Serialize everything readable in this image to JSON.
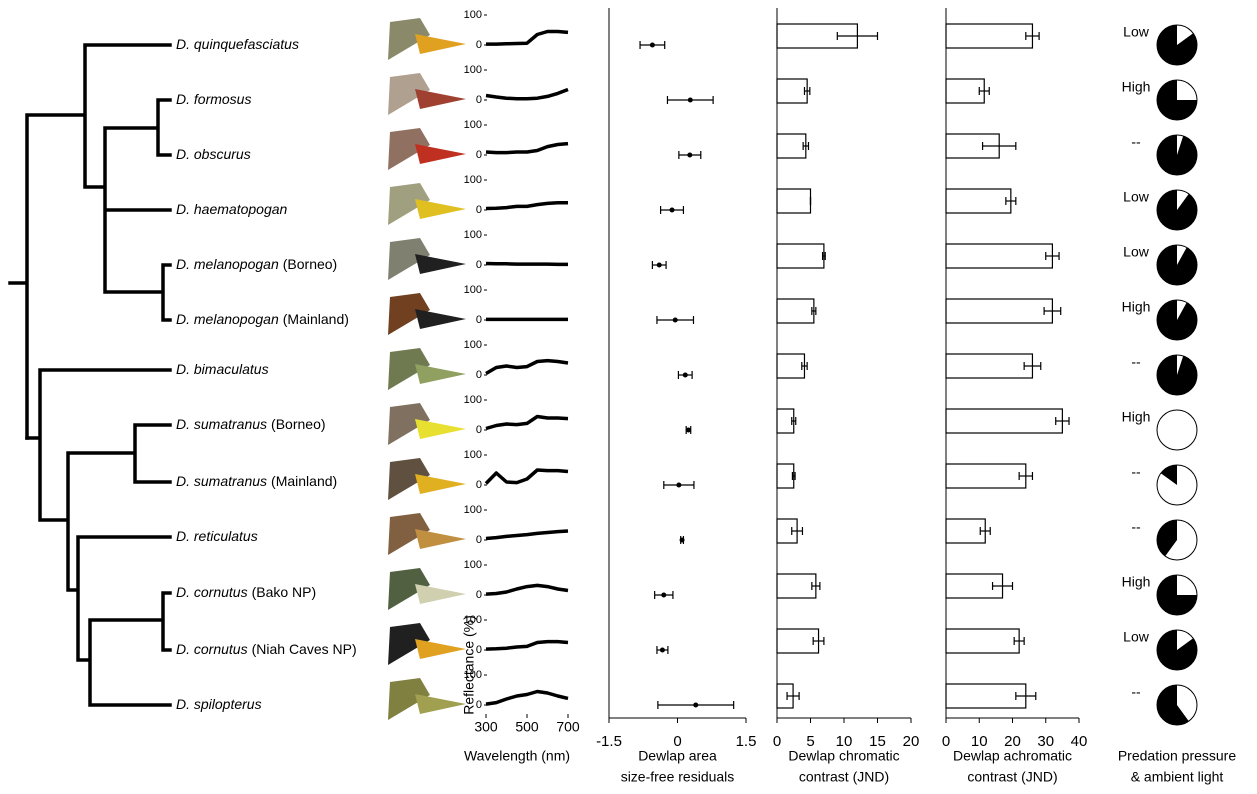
{
  "tree": {
    "species": [
      {
        "name": "D. quinquefasciatus"
      },
      {
        "name": "D. formosus"
      },
      {
        "name": "D. obscurus"
      },
      {
        "name": "D. haematopogan"
      },
      {
        "name": "D. melanopogan",
        "population": "(Borneo)"
      },
      {
        "name": "D. melanopogan",
        "population": "(Mainland)"
      },
      {
        "name": "D. bimaculatus"
      },
      {
        "name": "D. sumatranus",
        "population": "(Borneo)"
      },
      {
        "name": "D. sumatranus",
        "population": "(Mainland)"
      },
      {
        "name": "D. reticulatus"
      },
      {
        "name": "D. cornutus",
        "population": "(Bako NP)"
      },
      {
        "name": "D. cornutus",
        "population": "(Niah Caves NP)"
      },
      {
        "name": "D. spilopterus"
      }
    ]
  },
  "chart_data": [
    {
      "type": "line",
      "xlabel": "Wavelength (nm)",
      "ylabel": "Reflectance (%)",
      "color": "#000000",
      "x": [
        300,
        350,
        400,
        450,
        500,
        550,
        600,
        650,
        700
      ],
      "xlim": [
        300,
        700
      ],
      "xticks": [
        300,
        500,
        700
      ],
      "ylim": [
        0,
        100
      ],
      "yticks": [
        0,
        100
      ],
      "series": [
        {
          "values": [
            3,
            3,
            4,
            5,
            6,
            35,
            45,
            45,
            42
          ]
        },
        {
          "values": [
            15,
            10,
            6,
            4,
            4,
            6,
            12,
            22,
            35
          ]
        },
        {
          "values": [
            10,
            8,
            8,
            10,
            10,
            15,
            28,
            35,
            38
          ]
        },
        {
          "values": [
            5,
            6,
            8,
            12,
            12,
            18,
            22,
            24,
            24
          ]
        },
        {
          "values": [
            5,
            4,
            4,
            3,
            3,
            3,
            3,
            2,
            2
          ]
        },
        {
          "values": [
            2,
            2,
            2,
            2,
            2,
            2,
            2,
            2,
            2
          ]
        },
        {
          "values": [
            5,
            25,
            30,
            25,
            28,
            45,
            48,
            45,
            40
          ]
        },
        {
          "values": [
            5,
            15,
            20,
            18,
            22,
            45,
            40,
            40,
            38
          ]
        },
        {
          "values": [
            5,
            40,
            10,
            8,
            20,
            50,
            48,
            48,
            45
          ]
        },
        {
          "values": [
            5,
            8,
            12,
            15,
            18,
            22,
            25,
            28,
            30
          ]
        },
        {
          "values": [
            3,
            5,
            10,
            20,
            28,
            32,
            28,
            20,
            15
          ]
        },
        {
          "values": [
            3,
            4,
            6,
            10,
            12,
            25,
            28,
            28,
            25
          ]
        },
        {
          "values": [
            3,
            8,
            20,
            30,
            35,
            45,
            40,
            30,
            22
          ]
        }
      ]
    },
    {
      "type": "dot",
      "xlabel": [
        "Dewlap area",
        "size-free residuals"
      ],
      "color": "#000000",
      "xlim": [
        -1.5,
        1.5
      ],
      "xticks": [
        -1.5,
        0,
        1.5
      ],
      "values": [
        -0.55,
        0.28,
        0.27,
        -0.12,
        -0.4,
        -0.05,
        0.17,
        0.24,
        0.03,
        0.1,
        -0.3,
        -0.33,
        0.4
      ],
      "errors": [
        0.27,
        0.5,
        0.24,
        0.25,
        0.15,
        0.4,
        0.15,
        0.05,
        0.33,
        0.03,
        0.2,
        0.12,
        0.83
      ]
    },
    {
      "type": "bar",
      "xlabel": [
        "Dewlap chromatic",
        "contrast (JND)"
      ],
      "color": "#ffffff",
      "xlim": [
        0,
        20
      ],
      "xticks": [
        0,
        5,
        10,
        15,
        20
      ],
      "values": [
        12,
        4.5,
        4.3,
        5,
        7,
        5.5,
        4.1,
        2.5,
        2.5,
        3,
        5.8,
        6.2,
        2.4
      ],
      "errors": [
        3,
        0.4,
        0.4,
        0,
        0.2,
        0.3,
        0.4,
        0.3,
        0.2,
        0.8,
        0.6,
        0.8,
        0.9
      ]
    },
    {
      "type": "bar",
      "xlabel": [
        "Dewlap achromatic",
        "contrast (JND)"
      ],
      "color": "#ffffff",
      "xlim": [
        0,
        40
      ],
      "xticks": [
        0,
        10,
        20,
        30,
        40
      ],
      "values": [
        26,
        11.5,
        16,
        19.5,
        32,
        32,
        26,
        35,
        24,
        11.8,
        17,
        22,
        24
      ],
      "errors": [
        2,
        1.5,
        5,
        1.5,
        2,
        2.5,
        2.5,
        2,
        2,
        1.5,
        3,
        1.5,
        3
      ]
    },
    {
      "type": "pie",
      "xlabel": [
        "Predation pressure",
        "& ambient light"
      ],
      "color": "#000000",
      "labels": [
        "Low",
        "High",
        "--",
        "Low",
        "Low",
        "High",
        "--",
        "High",
        "--",
        "--",
        "High",
        "Low",
        "--"
      ],
      "values": [
        85,
        75,
        95,
        90,
        92,
        92,
        95,
        0,
        15,
        40,
        75,
        85,
        60
      ]
    }
  ]
}
